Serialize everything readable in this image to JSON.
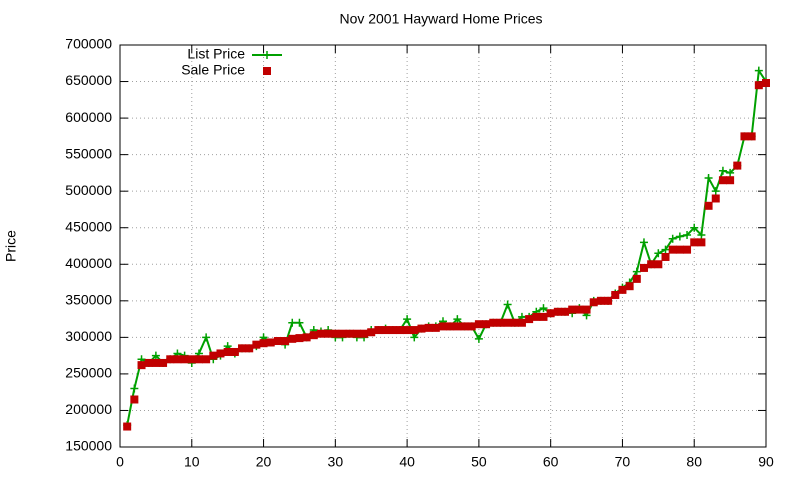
{
  "chart_data": {
    "type": "line",
    "title": "Nov 2001 Hayward Home Prices",
    "y_label": "Price",
    "x": [
      1,
      2,
      3,
      4,
      5,
      6,
      7,
      8,
      9,
      10,
      11,
      12,
      13,
      14,
      15,
      16,
      17,
      18,
      19,
      20,
      21,
      22,
      23,
      24,
      25,
      26,
      27,
      28,
      29,
      30,
      31,
      32,
      33,
      34,
      35,
      36,
      37,
      38,
      39,
      40,
      41,
      42,
      43,
      44,
      45,
      46,
      47,
      48,
      49,
      50,
      51,
      52,
      53,
      54,
      55,
      56,
      57,
      58,
      59,
      60,
      61,
      62,
      63,
      64,
      65,
      66,
      67,
      68,
      69,
      70,
      71,
      72,
      73,
      74,
      75,
      76,
      77,
      78,
      79,
      80,
      81,
      82,
      83,
      84,
      85,
      86,
      87,
      88,
      89,
      90
    ],
    "series": [
      {
        "name": "List Price",
        "color": "#00a000",
        "mode": "linespoints",
        "values": [
          180000,
          230000,
          270000,
          265000,
          275000,
          265000,
          270000,
          278000,
          275000,
          265000,
          278000,
          300000,
          270000,
          275000,
          288000,
          278000,
          285000,
          285000,
          288000,
          300000,
          293000,
          295000,
          290000,
          320000,
          320000,
          300000,
          310000,
          308000,
          310000,
          300000,
          300000,
          305000,
          300000,
          300000,
          310000,
          310000,
          312000,
          310000,
          310000,
          325000,
          300000,
          312000,
          315000,
          315000,
          322000,
          315000,
          325000,
          315000,
          315000,
          298000,
          318000,
          320000,
          320000,
          345000,
          320000,
          328000,
          328000,
          335000,
          340000,
          333000,
          335000,
          335000,
          333000,
          340000,
          330000,
          350000,
          350000,
          350000,
          360000,
          368000,
          375000,
          390000,
          430000,
          400000,
          415000,
          420000,
          435000,
          438000,
          440000,
          450000,
          440000,
          518000,
          500000,
          528000,
          525000,
          535000,
          575000,
          575000,
          665000,
          650000
        ]
      },
      {
        "name": "Sale Price",
        "color": "#c00000",
        "mode": "points",
        "values": [
          178000,
          215000,
          262000,
          265000,
          265000,
          265000,
          270000,
          270000,
          270000,
          270000,
          270000,
          270000,
          275000,
          278000,
          280000,
          280000,
          285000,
          285000,
          290000,
          292000,
          293000,
          295000,
          295000,
          298000,
          299000,
          300000,
          303000,
          305000,
          305000,
          305000,
          305000,
          305000,
          305000,
          305000,
          307000,
          310000,
          310000,
          310000,
          310000,
          310000,
          310000,
          312000,
          313000,
          313000,
          315000,
          315000,
          315000,
          315000,
          315000,
          318000,
          318000,
          320000,
          320000,
          320000,
          320000,
          320000,
          325000,
          328000,
          328000,
          333000,
          335000,
          335000,
          338000,
          338000,
          338000,
          348000,
          350000,
          350000,
          358000,
          365000,
          370000,
          380000,
          395000,
          400000,
          400000,
          410000,
          420000,
          420000,
          420000,
          430000,
          430000,
          480000,
          490000,
          515000,
          515000,
          535000,
          575000,
          575000,
          645000,
          648000
        ]
      }
    ],
    "xlim": [
      0,
      90
    ],
    "xticks": [
      0,
      10,
      20,
      30,
      40,
      50,
      60,
      70,
      80,
      90
    ],
    "ylim": [
      150000,
      700000
    ],
    "yticks": [
      150000,
      200000,
      250000,
      300000,
      350000,
      400000,
      450000,
      500000,
      550000,
      600000,
      650000,
      700000
    ],
    "grid": true,
    "legend": "top-left"
  }
}
